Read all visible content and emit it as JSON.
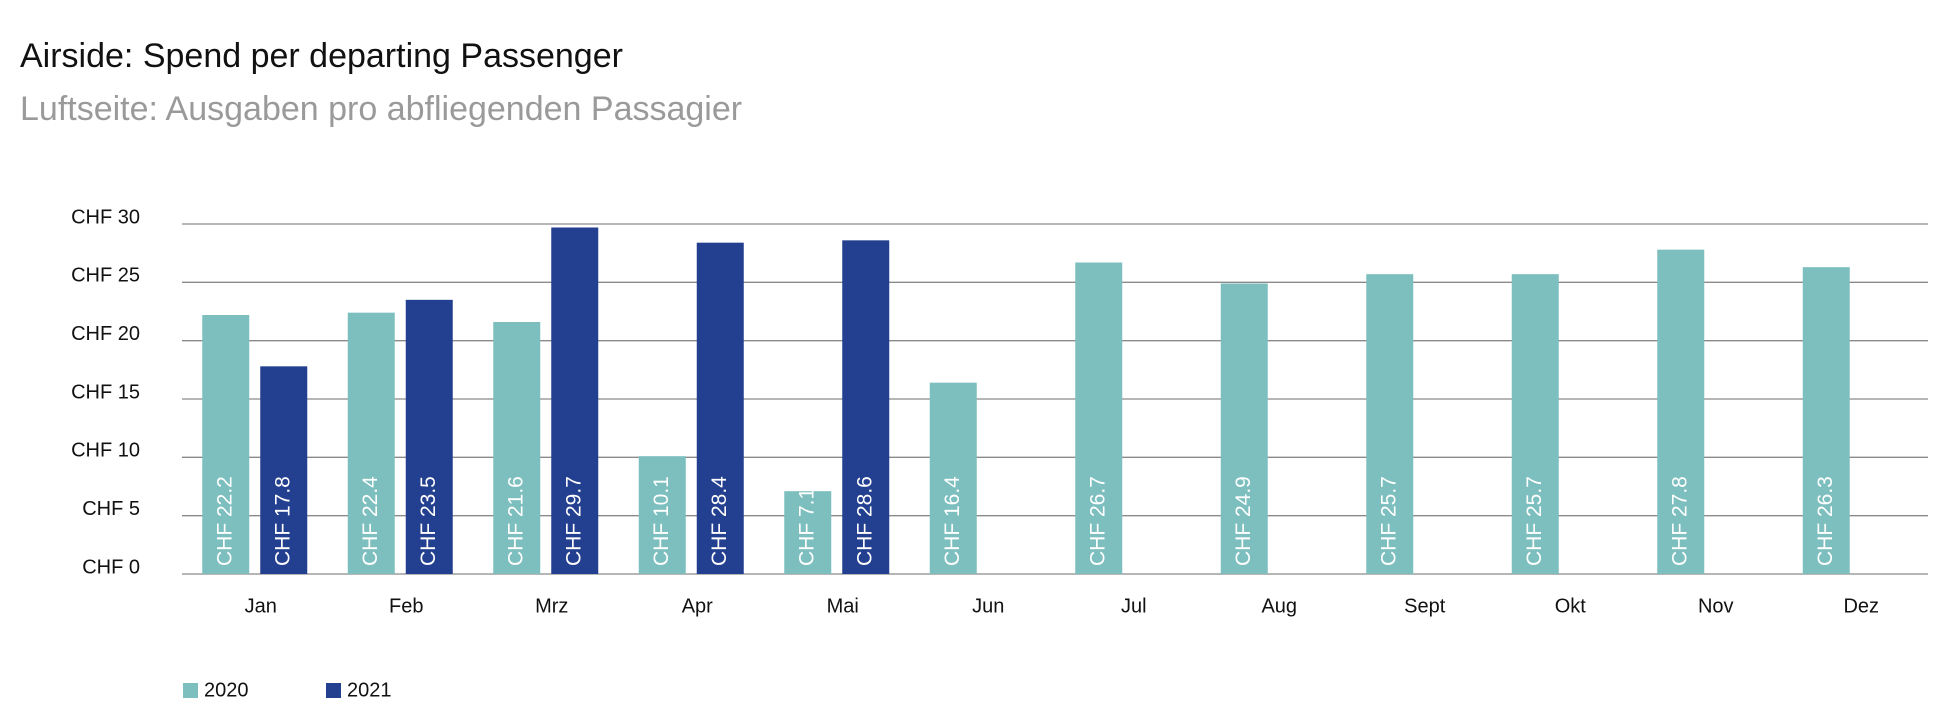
{
  "chart_data": {
    "type": "bar",
    "title": "Airside: Spend per departing Passenger",
    "subtitle": "Luftseite: Ausgaben pro abfliegenden Passagier",
    "categories": [
      "Jan",
      "Feb",
      "Mrz",
      "Apr",
      "Mai",
      "Jun",
      "Jul",
      "Aug",
      "Sept",
      "Okt",
      "Nov",
      "Dez"
    ],
    "series": [
      {
        "name": "2020",
        "color": "#7dbfbf",
        "values": [
          22.2,
          22.4,
          21.6,
          10.1,
          7.1,
          16.4,
          26.7,
          24.9,
          25.7,
          25.7,
          27.8,
          26.3
        ],
        "value_labels": [
          "CHF 22.2",
          "CHF 22.4",
          "CHF 21.6",
          "CHF 10.1",
          "CHF 7.1",
          "CHF 16.4",
          "CHF 26.7",
          "CHF 24.9",
          "CHF 25.7",
          "CHF 25.7",
          "CHF 27.8",
          "CHF 26.3"
        ]
      },
      {
        "name": "2021",
        "color": "#233f8f",
        "values": [
          17.8,
          23.5,
          29.7,
          28.4,
          28.6,
          null,
          null,
          null,
          null,
          null,
          null,
          null
        ],
        "value_labels": [
          "CHF 17.8",
          "CHF 23.5",
          "CHF 29.7",
          "CHF 28.4",
          "CHF 28.6",
          null,
          null,
          null,
          null,
          null,
          null,
          null
        ]
      }
    ],
    "ylim": [
      0,
      30
    ],
    "yticks": [
      {
        "value": 0,
        "label": "CHF 0"
      },
      {
        "value": 5,
        "label": "CHF 5"
      },
      {
        "value": 10,
        "label": "CHF 10"
      },
      {
        "value": 15,
        "label": "CHF 15"
      },
      {
        "value": 20,
        "label": "CHF 20"
      },
      {
        "value": 25,
        "label": "CHF 25"
      },
      {
        "value": 30,
        "label": "CHF 30"
      }
    ],
    "grid": true
  }
}
